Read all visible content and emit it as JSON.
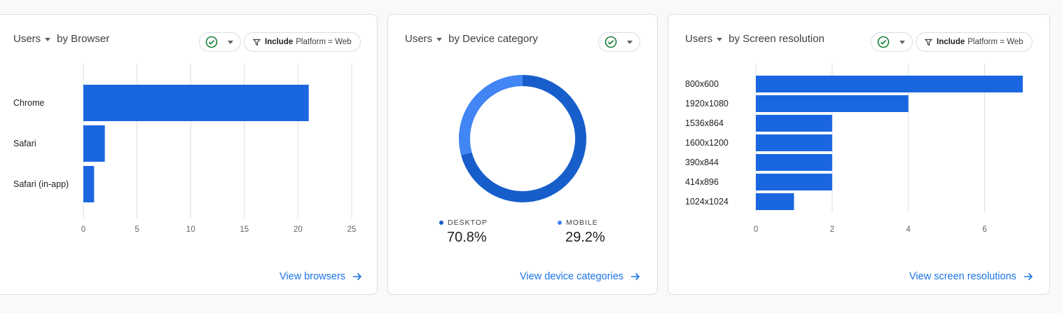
{
  "cards": {
    "browser": {
      "metric": "Users",
      "dimension": "by Browser",
      "filter_include": "Include",
      "filter_text": "Platform = Web",
      "link": "View browsers"
    },
    "device": {
      "metric": "Users",
      "dimension": "by Device category",
      "link": "View device categories"
    },
    "screen": {
      "metric": "Users",
      "dimension": "by Screen resolution",
      "filter_include": "Include",
      "filter_text": "Platform = Web",
      "link": "View screen resolutions"
    }
  },
  "colors": {
    "bar": "#1a66e0",
    "desktop": "#185ecb",
    "mobile": "#4285f4",
    "link": "#1a73e8",
    "check": "#188038"
  },
  "chart_data": [
    {
      "type": "bar",
      "orientation": "horizontal",
      "categories": [
        "Chrome",
        "Safari",
        "Safari (in-app)"
      ],
      "values": [
        21,
        2,
        1
      ],
      "xlim": [
        0,
        25
      ],
      "xticks": [
        0,
        5,
        10,
        15,
        20,
        25
      ],
      "grid": true
    },
    {
      "type": "pie",
      "donut": true,
      "categories": [
        "DESKTOP",
        "MOBILE"
      ],
      "values": [
        70.8,
        29.2
      ],
      "labels": [
        "70.8%",
        "29.2%"
      ]
    },
    {
      "type": "bar",
      "orientation": "horizontal",
      "categories": [
        "800x600",
        "1920x1080",
        "1536x864",
        "1600x1200",
        "390x844",
        "414x896",
        "1024x1024"
      ],
      "values": [
        7,
        4,
        2,
        2,
        2,
        2,
        1
      ],
      "xlim": [
        0,
        7
      ],
      "xticks": [
        0,
        2,
        4,
        6
      ],
      "grid": true
    }
  ]
}
